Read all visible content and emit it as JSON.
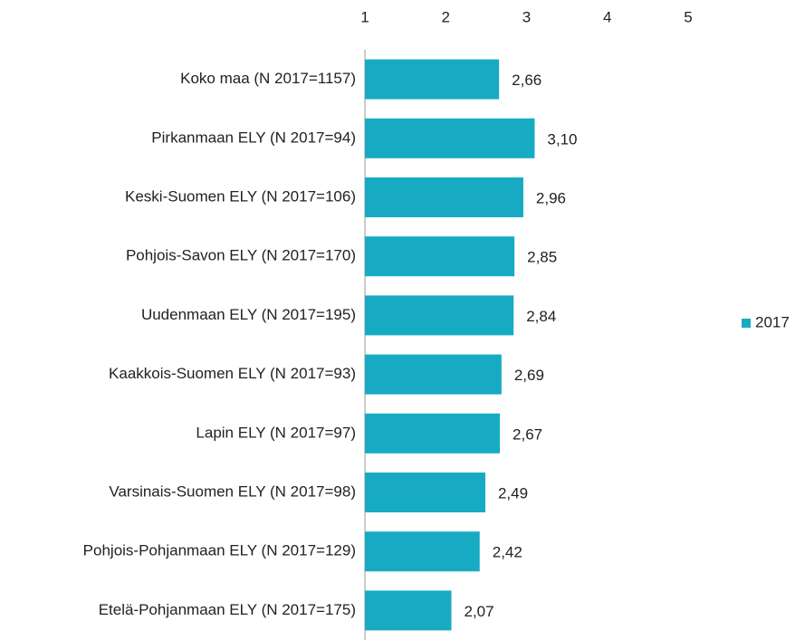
{
  "chart_data": {
    "type": "bar",
    "orientation": "horizontal",
    "categories": [
      "Koko maa (N 2017=1157)",
      "Pirkanmaan ELY (N 2017=94)",
      "Keski-Suomen ELY (N 2017=106)",
      "Pohjois-Savon ELY (N 2017=170)",
      "Uudenmaan ELY (N 2017=195)",
      "Kaakkois-Suomen ELY (N 2017=93)",
      "Lapin ELY (N 2017=97)",
      "Varsinais-Suomen ELY (N 2017=98)",
      "Pohjois-Pohjanmaan ELY (N 2017=129)",
      "Etelä-Pohjanmaan ELY (N 2017=175)"
    ],
    "series": [
      {
        "name": "2017",
        "color": "#17abc3",
        "values": [
          2.66,
          3.1,
          2.96,
          2.85,
          2.84,
          2.69,
          2.67,
          2.49,
          2.42,
          2.07
        ],
        "value_labels": [
          "2,66",
          "3,10",
          "2,96",
          "2,85",
          "2,84",
          "2,69",
          "2,67",
          "2,49",
          "2,42",
          "2,07"
        ]
      }
    ],
    "xlim": [
      1,
      5
    ],
    "xticks": [
      1,
      2,
      3,
      4,
      5
    ],
    "legend": "right"
  }
}
